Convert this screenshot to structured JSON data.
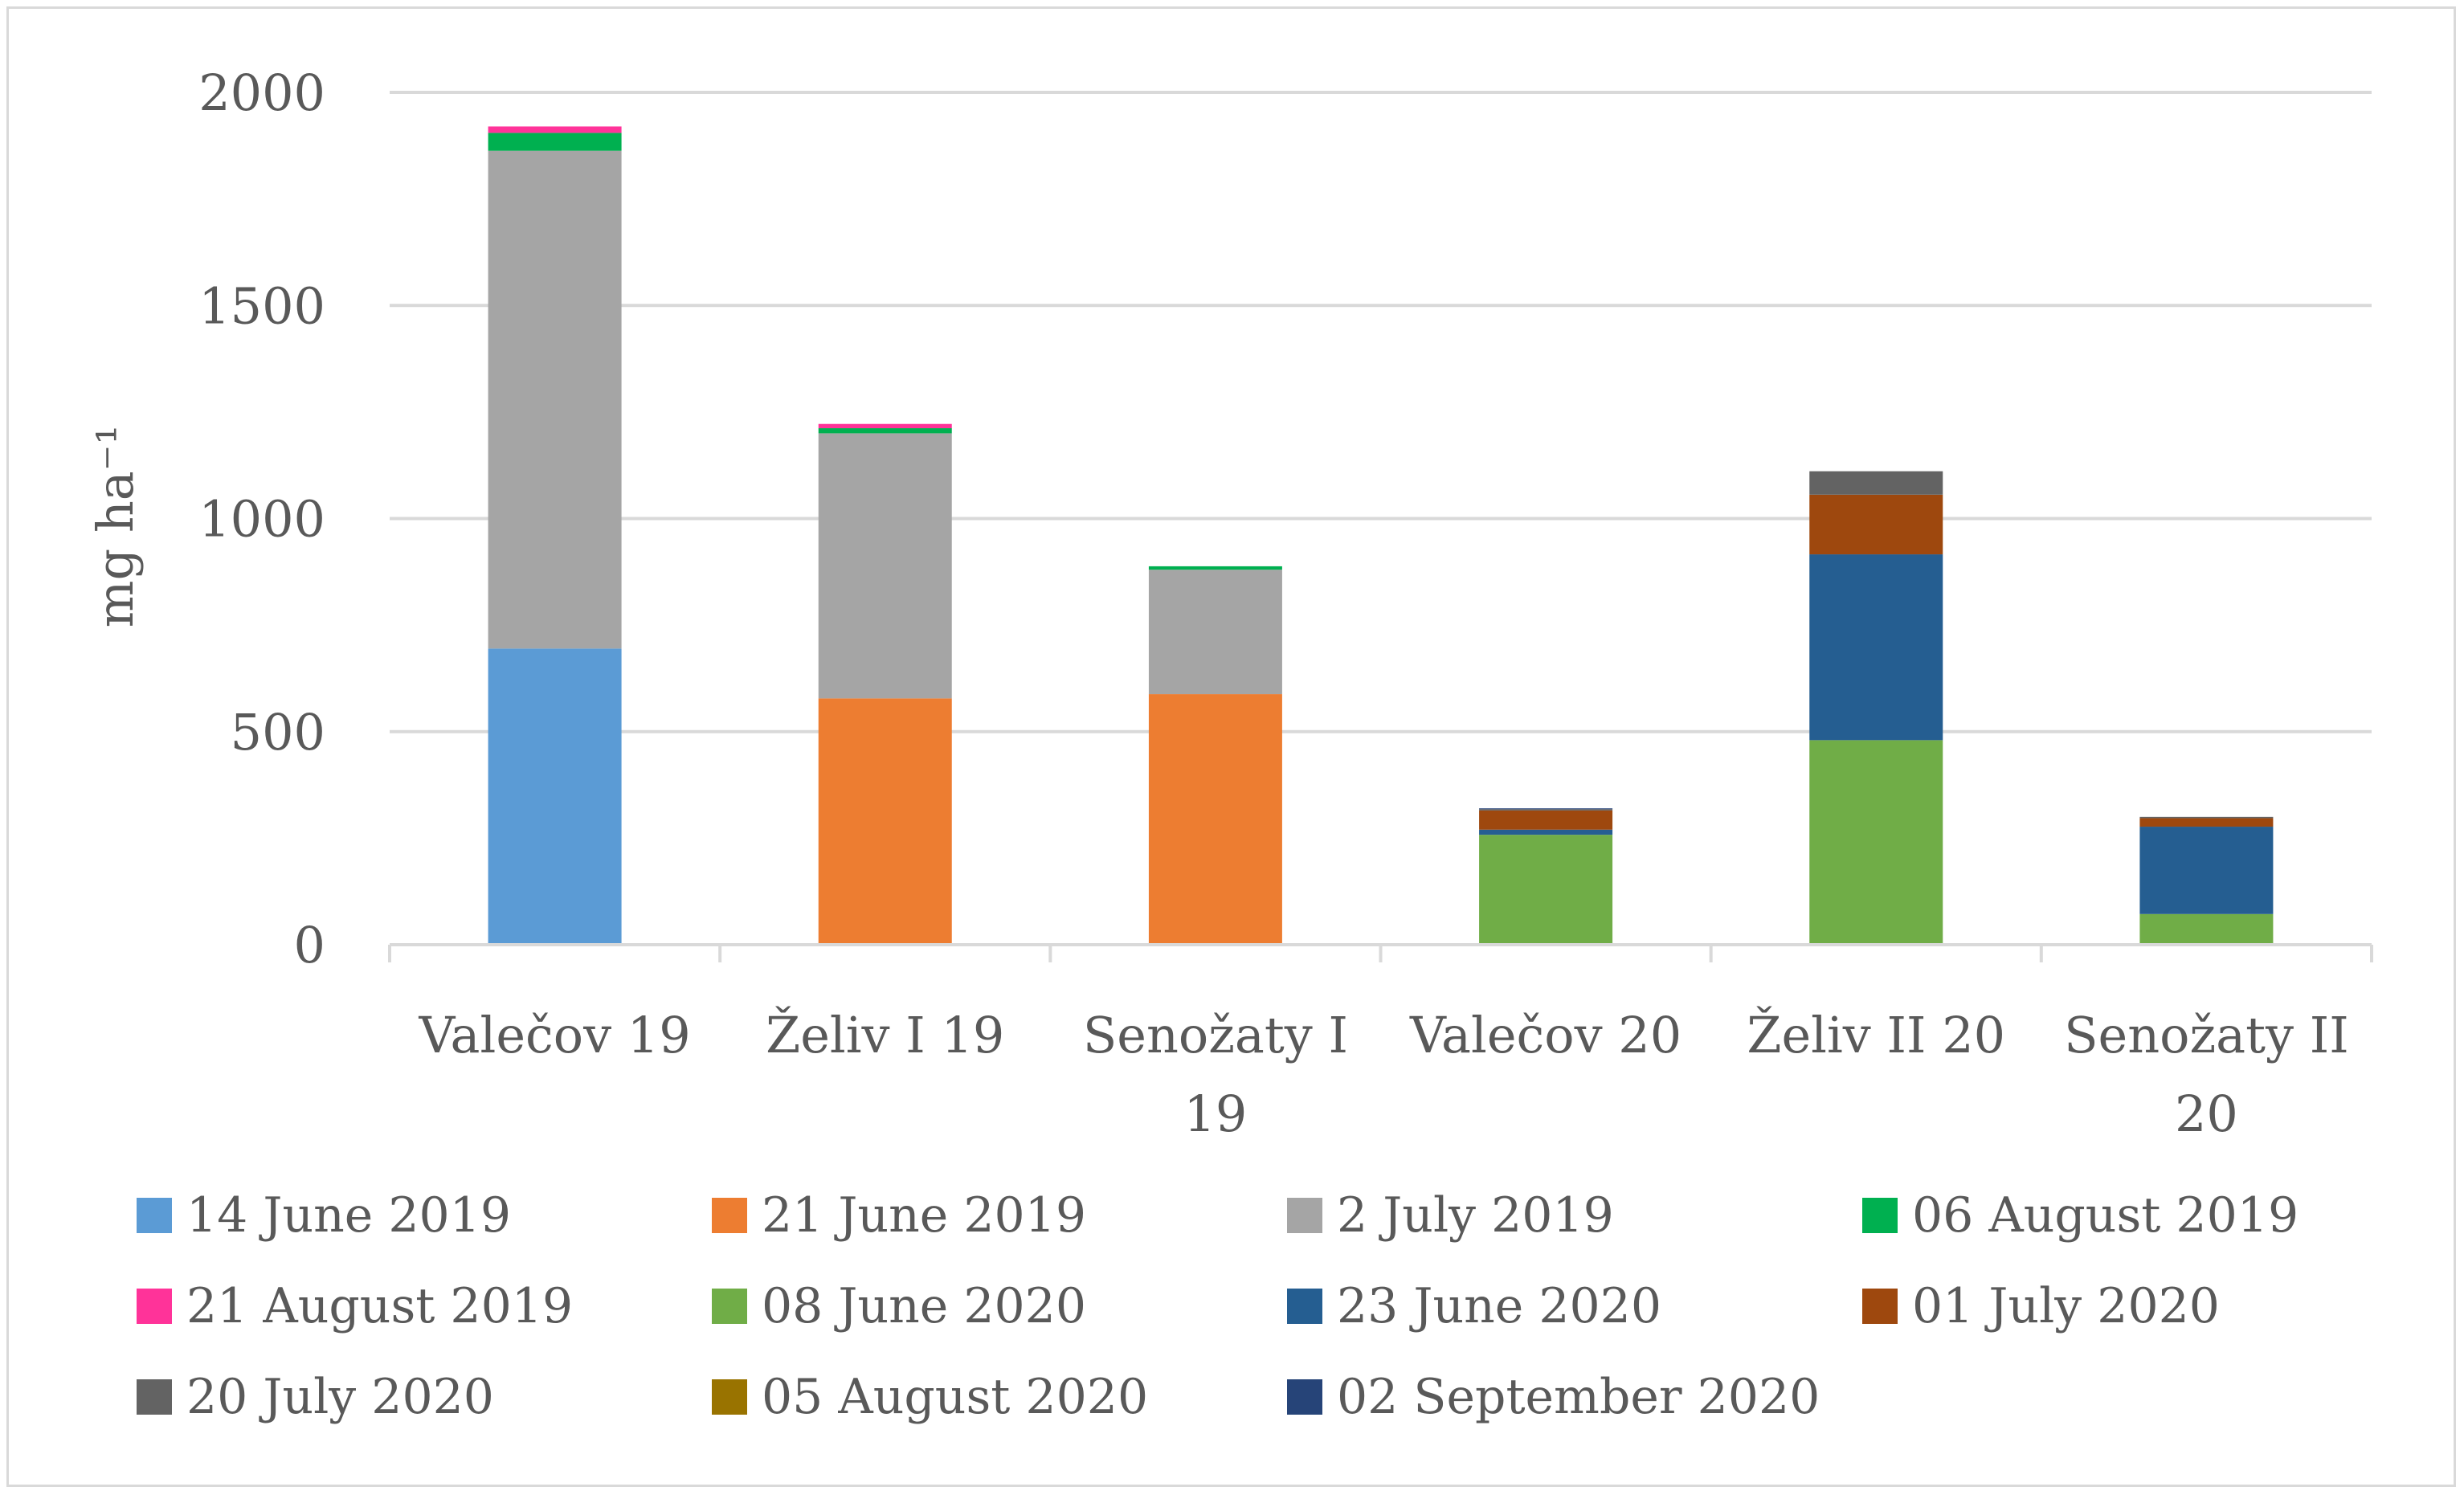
{
  "chart_data": {
    "type": "bar",
    "stacked": true,
    "title": "",
    "xlabel": "",
    "ylabel": "mg ha⁻¹",
    "ylim": [
      0,
      2000
    ],
    "yticks": [
      0,
      500,
      1000,
      1500,
      2000
    ],
    "gridlines": true,
    "legend_position": "bottom",
    "categories": [
      [
        "Valečov 19"
      ],
      [
        "Želiv I 19"
      ],
      [
        "Senožaty I",
        "19"
      ],
      [
        "Valečov 20"
      ],
      [
        "Želiv II 20"
      ],
      [
        "Senožaty II",
        "20"
      ]
    ],
    "series": [
      {
        "name": "14 June 2019",
        "color": "#5b9bd5",
        "values": [
          695,
          0,
          0,
          0,
          0,
          0
        ]
      },
      {
        "name": "21 June 2019",
        "color": "#ed7d31",
        "values": [
          0,
          578,
          588,
          0,
          0,
          0
        ]
      },
      {
        "name": "2 July 2019",
        "color": "#a5a5a5",
        "values": [
          1168,
          622,
          292,
          0,
          0,
          0
        ]
      },
      {
        "name": "06 August 2019",
        "color": "#00b050",
        "values": [
          42,
          12,
          8,
          0,
          0,
          0
        ]
      },
      {
        "name": "21 August 2019",
        "color": "#ff3399",
        "values": [
          15,
          10,
          0,
          0,
          0,
          0
        ]
      },
      {
        "name": "08 June 2020",
        "color": "#70ad47",
        "values": [
          0,
          0,
          0,
          258,
          480,
          72
        ]
      },
      {
        "name": "23 June 2020",
        "color": "#255e91",
        "values": [
          0,
          0,
          0,
          12,
          436,
          205
        ]
      },
      {
        "name": "01 July 2020",
        "color": "#9e480e",
        "values": [
          0,
          0,
          0,
          45,
          140,
          20
        ]
      },
      {
        "name": "20 July 2020",
        "color": "#636363",
        "values": [
          0,
          0,
          0,
          3,
          55,
          3
        ]
      },
      {
        "name": "05 August 2020",
        "color": "#997300",
        "values": [
          0,
          0,
          0,
          0,
          0,
          0
        ]
      },
      {
        "name": "02 September 2020",
        "color": "#264478",
        "values": [
          0,
          0,
          0,
          2,
          0,
          0
        ]
      }
    ]
  }
}
